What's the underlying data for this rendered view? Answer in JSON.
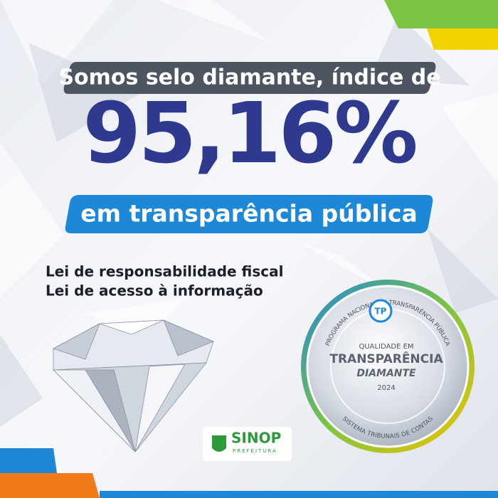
{
  "headline": {
    "intro": "Somos selo diamante, índice de",
    "score": "95,16%",
    "subject": "em transparência pública"
  },
  "laws": [
    "Lei de responsabilidade fiscal",
    "Lei de acesso à informação"
  ],
  "badge": {
    "arc_top": "PROGRAMA NACIONAL DE TRANSPARÊNCIA PÚBLICA",
    "logo": "TP",
    "line1": "QUALIDADE EM",
    "line2": "TRANSPARÊNCIA",
    "line3": "DIAMANTE",
    "year": "2024",
    "arc_bottom": "SISTEMA TRIBUNAIS DE CONTAS"
  },
  "brand": {
    "name": "SINOP",
    "sub": "PREFEITURA"
  }
}
